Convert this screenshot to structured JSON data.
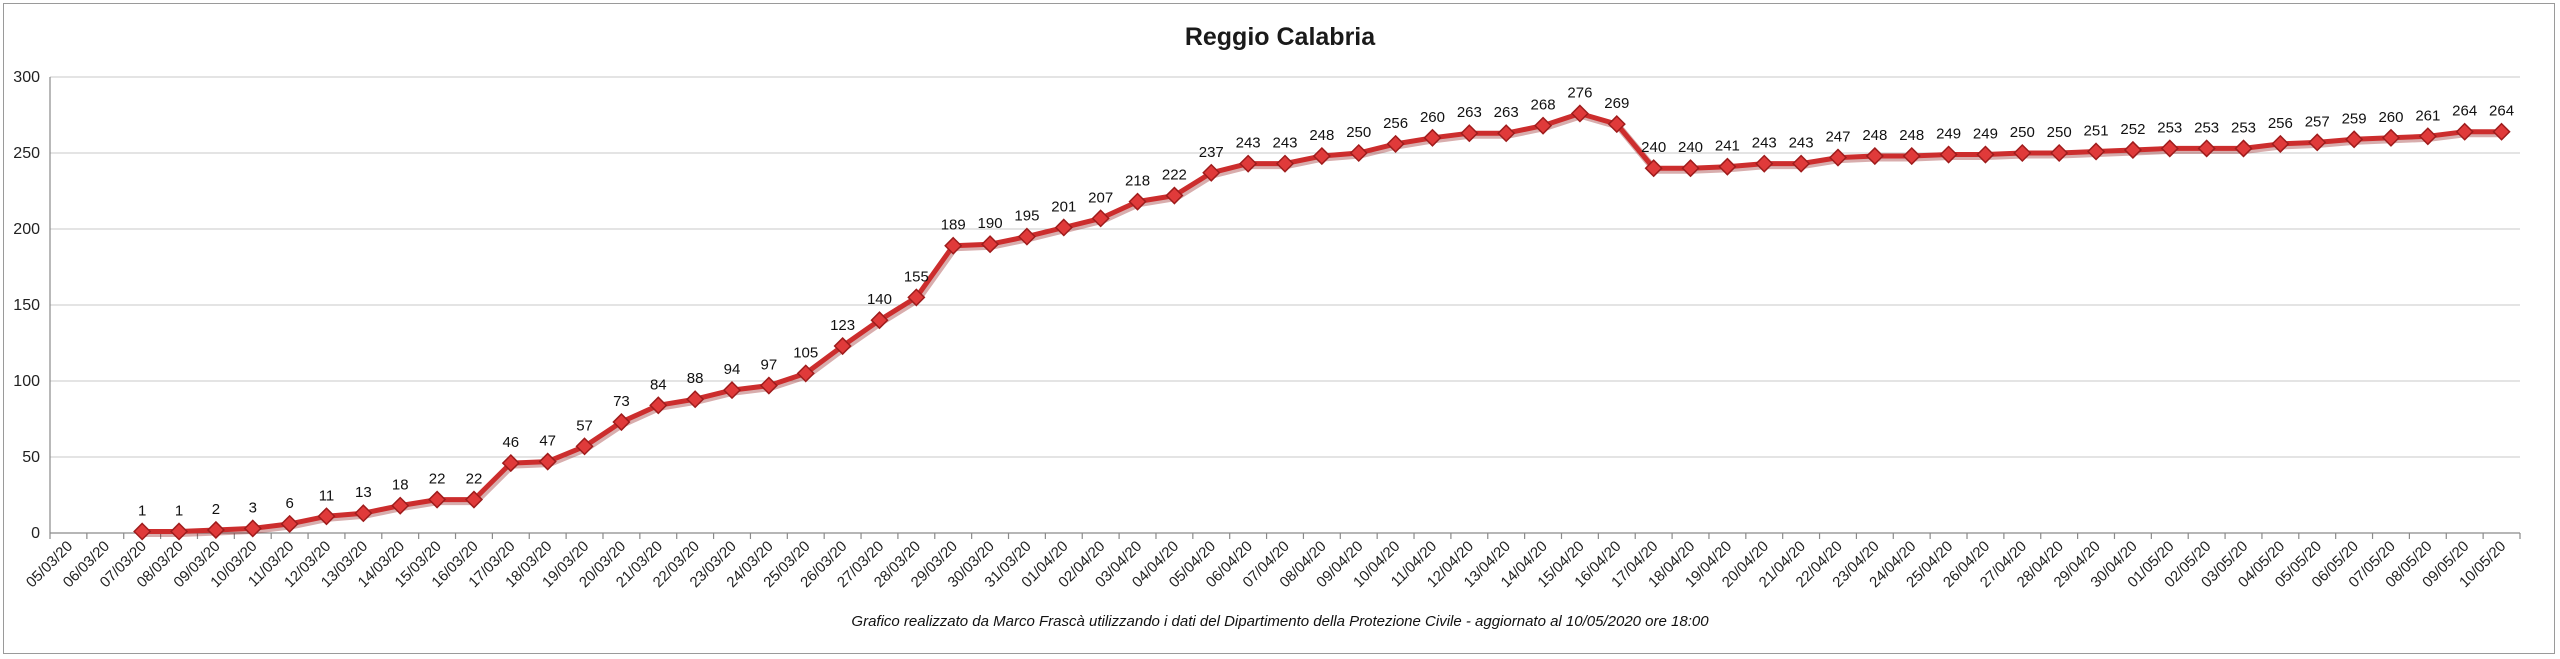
{
  "chart_data": {
    "type": "line",
    "title": "Reggio Calabria",
    "footnote": "Grafico  realizzato da Marco Frascà  utilizzando i dati del Dipartimento  della Protezione Civile  - aggiornato al 10/05/2020 ore 18:00",
    "xlabel": "",
    "ylabel": "",
    "ylim": [
      0,
      300
    ],
    "yticks": [
      0,
      50,
      100,
      150,
      200,
      250,
      300
    ],
    "grid": true,
    "colors": {
      "line": "#cc2d2d",
      "marker": "#e03a3a",
      "marker_edge": "#9e1c1c"
    },
    "categories": [
      "05/03/20",
      "06/03/20",
      "07/03/20",
      "08/03/20",
      "09/03/20",
      "10/03/20",
      "11/03/20",
      "12/03/20",
      "13/03/20",
      "14/03/20",
      "15/03/20",
      "16/03/20",
      "17/03/20",
      "18/03/20",
      "19/03/20",
      "20/03/20",
      "21/03/20",
      "22/03/20",
      "23/03/20",
      "24/03/20",
      "25/03/20",
      "26/03/20",
      "27/03/20",
      "28/03/20",
      "29/03/20",
      "30/03/20",
      "31/03/20",
      "01/04/20",
      "02/04/20",
      "03/04/20",
      "04/04/20",
      "05/04/20",
      "06/04/20",
      "07/04/20",
      "08/04/20",
      "09/04/20",
      "10/04/20",
      "11/04/20",
      "12/04/20",
      "13/04/20",
      "14/04/20",
      "15/04/20",
      "16/04/20",
      "17/04/20",
      "18/04/20",
      "19/04/20",
      "20/04/20",
      "21/04/20",
      "22/04/20",
      "23/04/20",
      "24/04/20",
      "25/04/20",
      "26/04/20",
      "27/04/20",
      "28/04/20",
      "29/04/20",
      "30/04/20",
      "01/05/20",
      "02/05/20",
      "03/05/20",
      "04/05/20",
      "05/05/20",
      "06/05/20",
      "07/05/20",
      "08/05/20",
      "09/05/20",
      "10/05/20"
    ],
    "values": [
      null,
      null,
      1,
      1,
      2,
      3,
      6,
      11,
      13,
      18,
      22,
      22,
      46,
      47,
      57,
      73,
      84,
      88,
      94,
      97,
      105,
      123,
      140,
      155,
      189,
      190,
      195,
      201,
      207,
      218,
      222,
      237,
      243,
      243,
      248,
      250,
      256,
      260,
      263,
      263,
      268,
      276,
      269,
      240,
      240,
      241,
      243,
      243,
      247,
      248,
      248,
      249,
      249,
      250,
      250,
      251,
      252,
      253,
      253,
      253,
      256,
      257,
      259,
      260,
      261,
      264,
      264
    ]
  }
}
